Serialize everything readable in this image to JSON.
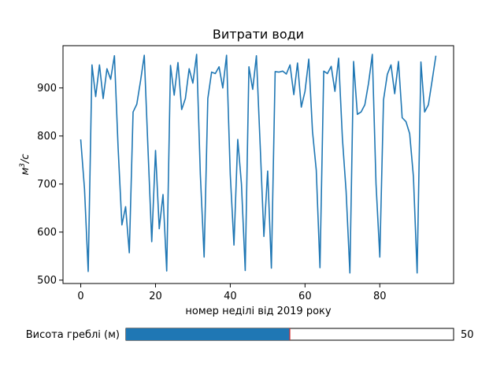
{
  "chart_data": {
    "type": "line",
    "title": "Витрати води",
    "xlabel": "номер неділі від 2019 року",
    "ylabel_base": "м",
    "ylabel_sup": "3",
    "ylabel_rest": "/с",
    "xlim": [
      -4.75,
      99.75
    ],
    "ylim": [
      493,
      988
    ],
    "x_ticks": [
      0,
      20,
      40,
      60,
      80
    ],
    "y_ticks": [
      500,
      600,
      700,
      800,
      900
    ],
    "series": [
      {
        "color": "#1f77b4",
        "x": [
          0,
          1,
          2,
          3,
          4,
          5,
          6,
          7,
          8,
          9,
          10,
          11,
          12,
          13,
          14,
          15,
          16,
          17,
          18,
          19,
          20,
          21,
          22,
          23,
          24,
          25,
          26,
          27,
          28,
          29,
          30,
          31,
          32,
          33,
          34,
          35,
          36,
          37,
          38,
          39,
          40,
          41,
          42,
          43,
          44,
          45,
          46,
          47,
          48,
          49,
          50,
          51,
          52,
          53,
          54,
          55,
          56,
          57,
          58,
          59,
          60,
          61,
          62,
          63,
          64,
          65,
          66,
          67,
          68,
          69,
          70,
          71,
          72,
          73,
          74,
          75,
          76,
          77,
          78,
          79,
          80,
          81,
          82,
          83,
          84,
          85,
          86,
          87,
          88,
          89,
          90,
          91,
          92,
          93,
          94,
          95
        ],
        "values": [
          793,
          690,
          518,
          948,
          882,
          948,
          878,
          940,
          918,
          967,
          775,
          615,
          653,
          557,
          850,
          866,
          915,
          968,
          770,
          580,
          770,
          607,
          678,
          519,
          947,
          885,
          953,
          855,
          878,
          940,
          910,
          970,
          720,
          548,
          878,
          933,
          930,
          944,
          900,
          968,
          720,
          573,
          793,
          700,
          520,
          944,
          897,
          967,
          780,
          591,
          727,
          525,
          934,
          933,
          935,
          929,
          948,
          886,
          952,
          860,
          893,
          960,
          810,
          729,
          526,
          935,
          930,
          945,
          893,
          962,
          795,
          685,
          515,
          955,
          845,
          850,
          865,
          910,
          970,
          700,
          548,
          875,
          928,
          948,
          888,
          955,
          838,
          830,
          805,
          715,
          515,
          954,
          850,
          865,
          915,
          967
        ]
      }
    ],
    "slider": {
      "label": "Висота греблі (м)",
      "value": 50,
      "value_text": "50",
      "min": 0,
      "max": 100,
      "fill_color": "#1f77b4",
      "marker_color": "#d62728"
    }
  }
}
